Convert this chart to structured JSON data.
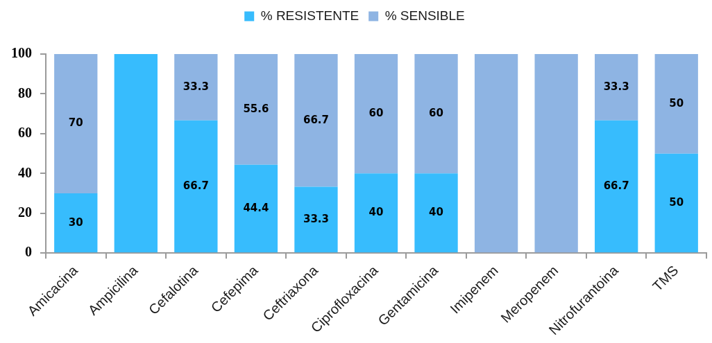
{
  "chart_data": {
    "type": "bar",
    "stacked": true,
    "legend": "top",
    "grid": false,
    "categories": [
      "Amicacina",
      "Ampicilina",
      "Cefalotina",
      "Cefepima",
      "Ceftriaxona",
      "Ciprofloxacina",
      "Gentamicina",
      "Imipenem",
      "Meropenem",
      "Nitrofurantoina",
      "TMS"
    ],
    "ylim": [
      0,
      100
    ],
    "yticks": [
      0,
      20,
      40,
      60,
      80,
      100
    ],
    "series": [
      {
        "name": "% RESISTENTE",
        "color": "#37bcfd",
        "values": [
          30,
          100,
          66.7,
          44.4,
          33.3,
          40,
          40,
          0,
          0,
          66.7,
          50
        ],
        "value_labels": [
          "30",
          null,
          "66.7",
          "44.4",
          "33.3",
          "40",
          "40",
          null,
          null,
          "66.7",
          "50"
        ]
      },
      {
        "name": "% SENSIBLE",
        "color": "#8eb4e3",
        "values": [
          70,
          0,
          33.3,
          55.6,
          66.7,
          60,
          60,
          100,
          100,
          33.3,
          50
        ],
        "value_labels": [
          "70",
          null,
          "33.3",
          "55.6",
          "66.7",
          "60",
          "60",
          null,
          null,
          "33.3",
          "50"
        ]
      }
    ]
  }
}
